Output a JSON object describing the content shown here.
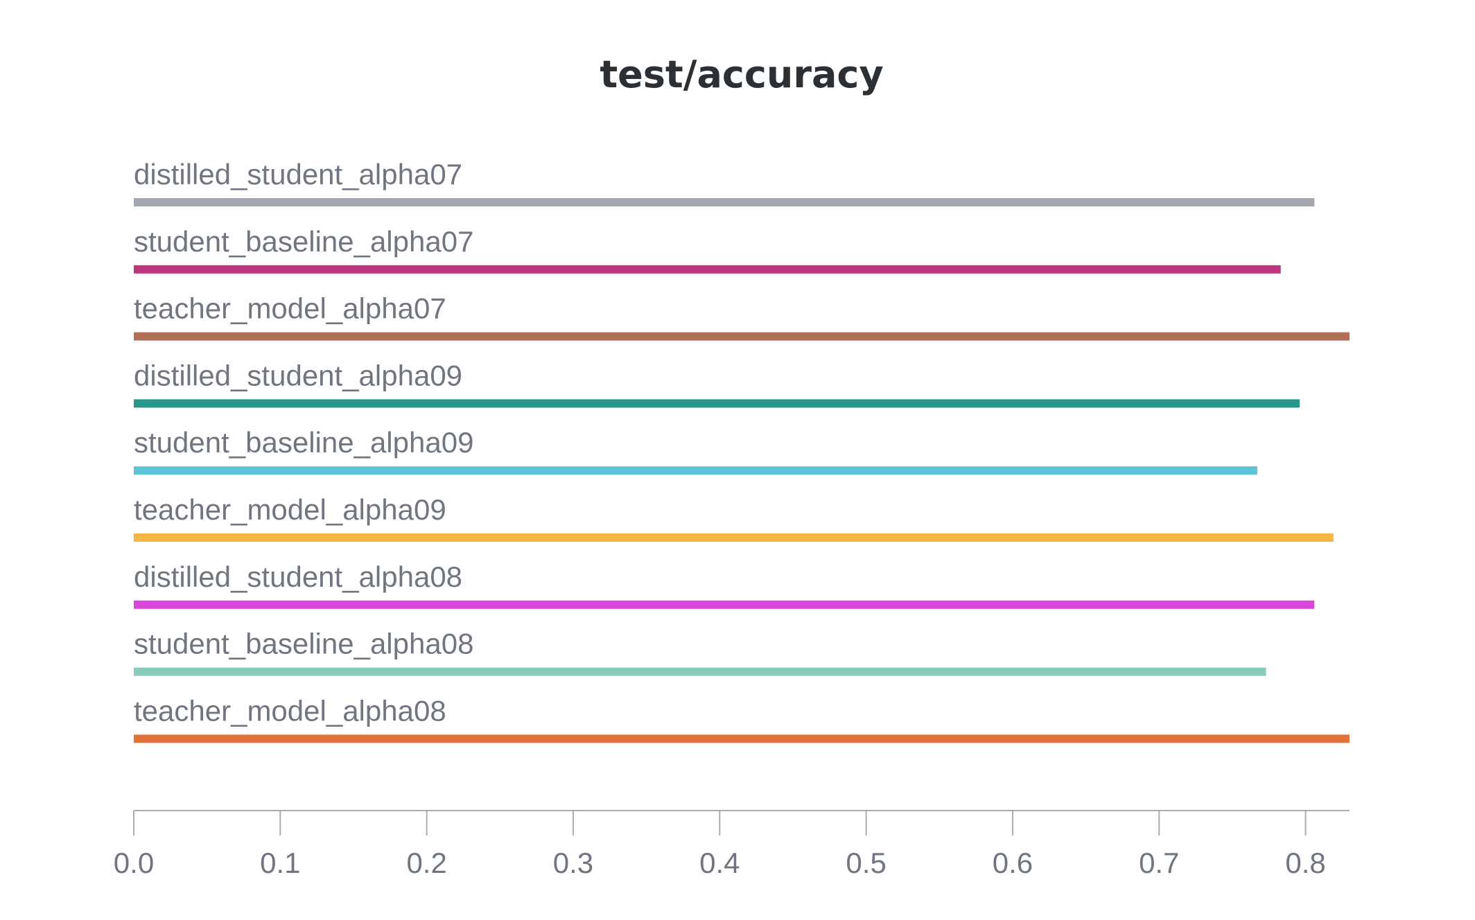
{
  "chart_data": {
    "type": "bar",
    "orientation": "horizontal",
    "title": "test/accuracy",
    "xlabel": "",
    "ylabel": "",
    "xlim": [
      0,
      0.83
    ],
    "x_ticks": [
      "0.0",
      "0.1",
      "0.2",
      "0.3",
      "0.4",
      "0.5",
      "0.6",
      "0.7",
      "0.8"
    ],
    "grid": false,
    "categories": [
      "distilled_student_alpha07",
      "student_baseline_alpha07",
      "teacher_model_alpha07",
      "distilled_student_alpha09",
      "student_baseline_alpha09",
      "teacher_model_alpha09",
      "distilled_student_alpha08",
      "student_baseline_alpha08",
      "teacher_model_alpha08"
    ],
    "values": [
      0.806,
      0.783,
      0.83,
      0.796,
      0.767,
      0.819,
      0.806,
      0.773,
      0.83
    ],
    "colors": [
      "#a1a7ad",
      "#c0367e",
      "#b07157",
      "#27978a",
      "#5ec2d9",
      "#f5b642",
      "#d946d9",
      "#87cbb8",
      "#e0723a"
    ]
  }
}
